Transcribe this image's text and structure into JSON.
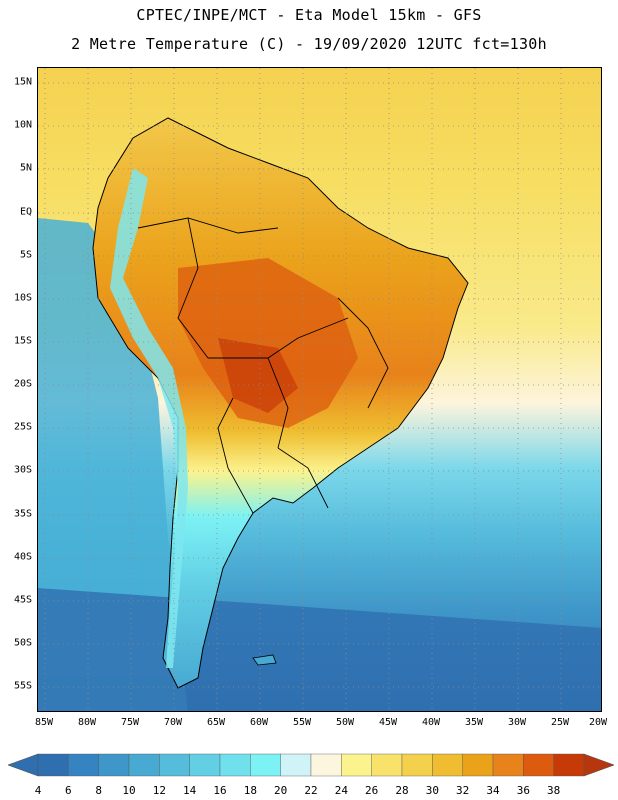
{
  "header": {
    "title_line1": "CPTEC/INPE/MCT -  Eta Model 15km - GFS",
    "title_line2": "2 Metre Temperature (C) - 19/09/2020 12UTC fct=130h"
  },
  "map": {
    "lat_labels": [
      "15N",
      "10N",
      "5N",
      "EQ",
      "5S",
      "10S",
      "15S",
      "20S",
      "25S",
      "30S",
      "35S",
      "40S",
      "45S",
      "50S",
      "55S"
    ],
    "lon_labels": [
      "85W",
      "80W",
      "75W",
      "70W",
      "65W",
      "60W",
      "55W",
      "50W",
      "45W",
      "40W",
      "35W",
      "30W",
      "25W",
      "20W"
    ]
  },
  "colorbar": {
    "labels": [
      "4",
      "6",
      "8",
      "10",
      "12",
      "14",
      "16",
      "18",
      "20",
      "22",
      "24",
      "26",
      "28",
      "30",
      "32",
      "34",
      "36",
      "38"
    ],
    "colors": [
      "#2f6fb0",
      "#3583c0",
      "#3f97c9",
      "#48a9d2",
      "#56bcdc",
      "#62cfe5",
      "#6fe0ec",
      "#7cf2f4",
      "#cff3f7",
      "#fdf6df",
      "#fbf38e",
      "#f8e26c",
      "#f4d14c",
      "#efbd2f",
      "#eba21b",
      "#e8821a",
      "#dc5b0f",
      "#c63a07",
      "#b8360e"
    ]
  }
}
